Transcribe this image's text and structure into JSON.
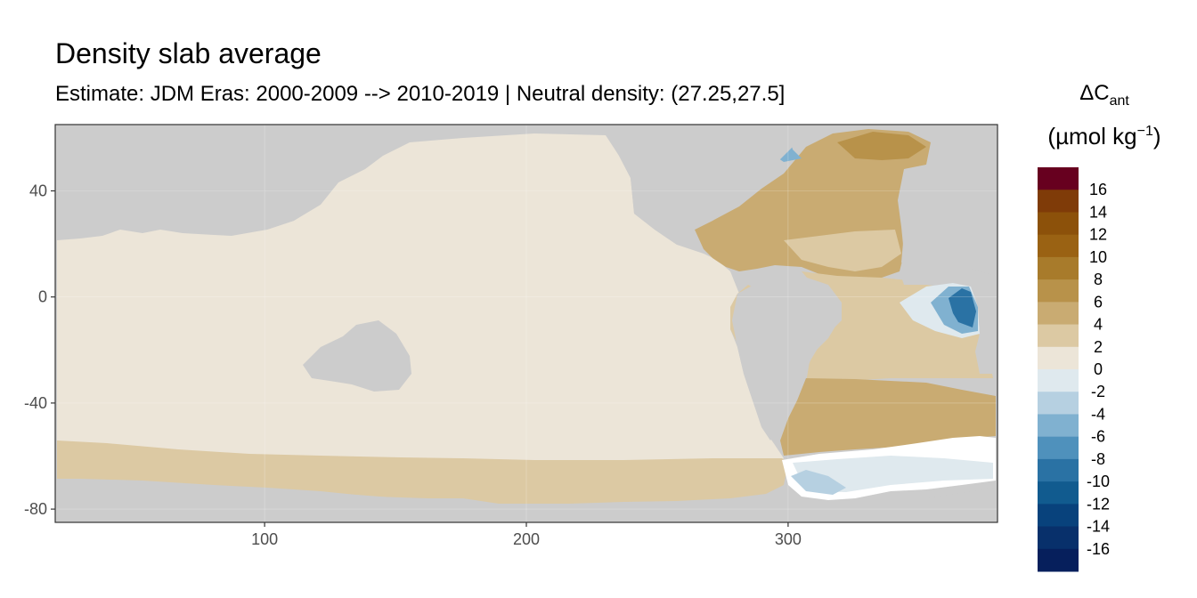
{
  "title": "Density slab average",
  "subtitle": "Estimate: JDM Eras: 2000-2009 --> 2010-2019 | Neutral density: (27.25,27.5]",
  "chart_data": {
    "type": "heatmap",
    "title": "Density slab average",
    "subtitle": "Estimate: JDM Eras: 2000-2009 --> 2010-2019 | Neutral density: (27.25,27.5]",
    "xlabel": "",
    "ylabel": "",
    "xlim": [
      20,
      380
    ],
    "ylim": [
      -85,
      65
    ],
    "x_ticks": [
      100,
      200,
      300
    ],
    "y_ticks": [
      40,
      0,
      -40,
      -80
    ],
    "grid": true,
    "land_color": "#cccccc",
    "legend": {
      "title_main": "ΔC",
      "title_sub": "ant",
      "title_unit_pre": "(µmol kg",
      "title_unit_sup": "−1",
      "title_unit_post": ")",
      "placement": "right",
      "labels": [
        "16",
        "14",
        "12",
        "10",
        "8",
        "6",
        "4",
        "2",
        "0",
        "-2",
        "-4",
        "-6",
        "-8",
        "-10",
        "-12",
        "-14",
        "-16"
      ],
      "colors": [
        "#67001f",
        "#7f3b08",
        "#8c510a",
        "#9a6213",
        "#a87b2b",
        "#b8924a",
        "#c9ab72",
        "#dcc9a3",
        "#ece5d8",
        "#dfe9ee",
        "#b6d0e1",
        "#80b1d0",
        "#4f91bc",
        "#2a72a4",
        "#115b8f",
        "#08427c",
        "#08306b",
        "#061f5c"
      ],
      "boundaries": [
        18,
        16,
        14,
        12,
        10,
        8,
        6,
        4,
        2,
        0,
        -2,
        -4,
        -6,
        -8,
        -10,
        -12,
        -14,
        -16,
        -18
      ]
    },
    "regions": [
      {
        "name": "pacific-indian-background",
        "value": 1
      },
      {
        "name": "southern-band",
        "value": 3
      },
      {
        "name": "north-atlantic",
        "value": 5
      },
      {
        "name": "south-atlantic",
        "value": 4
      },
      {
        "name": "south-atlantic-deep",
        "value": 5
      },
      {
        "name": "gulf-of-guinea",
        "value": -8
      },
      {
        "name": "weddell-sea",
        "value": -1
      }
    ]
  }
}
